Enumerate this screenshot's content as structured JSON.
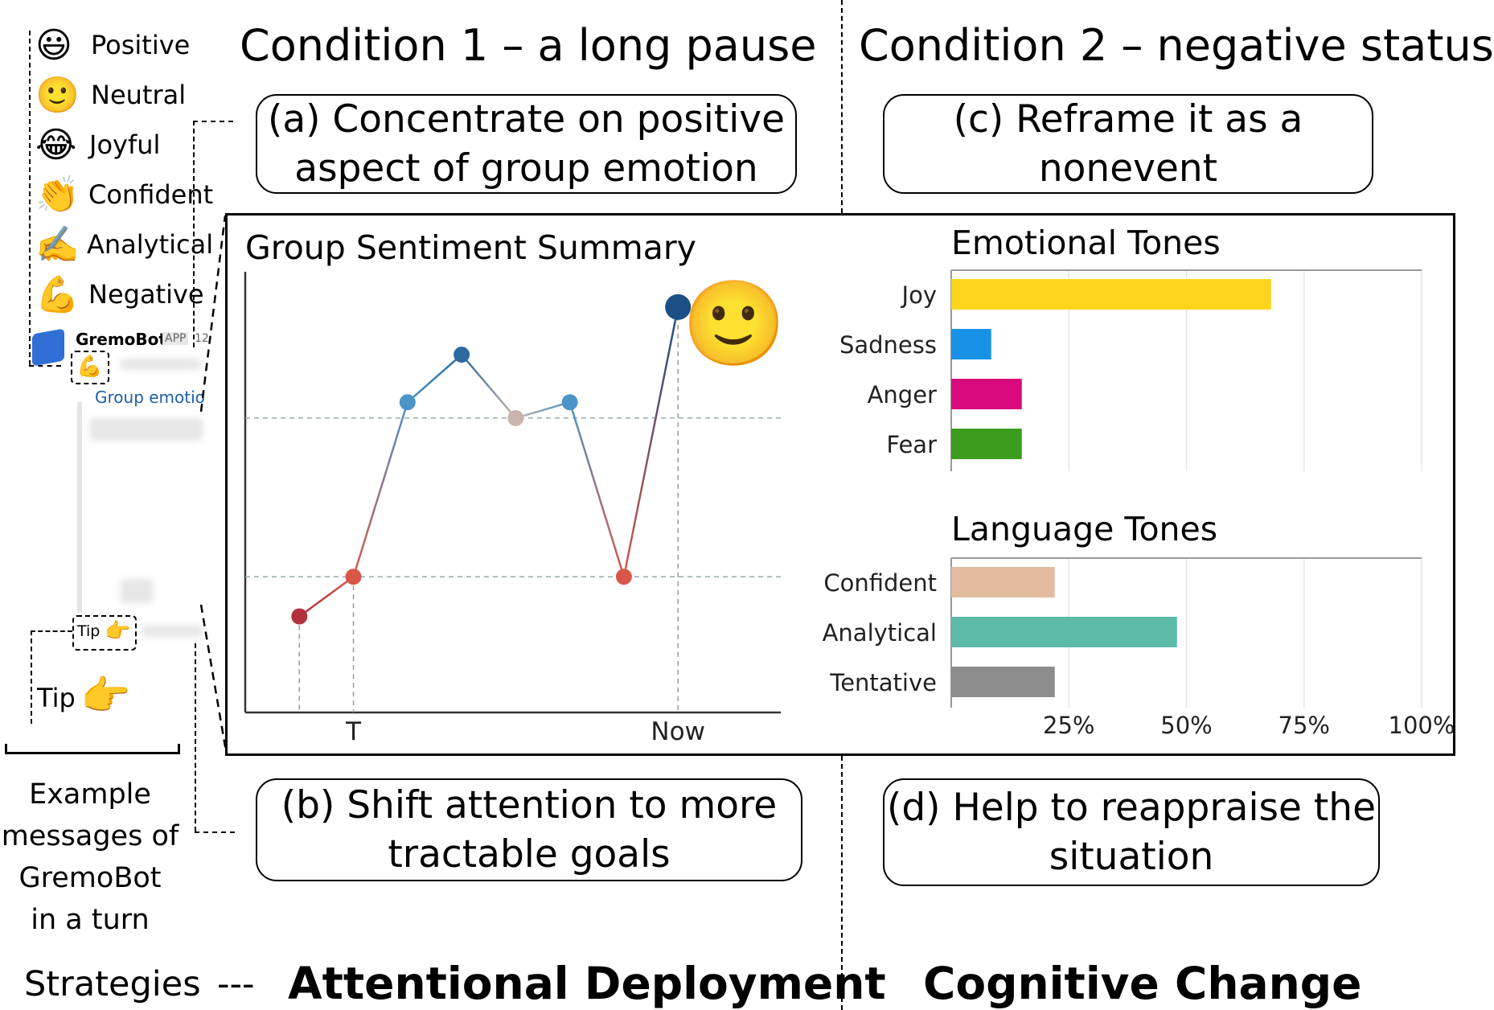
{
  "legend": {
    "items": [
      {
        "icon": "grinning-face-icon",
        "glyph": "😃",
        "label": "Positive"
      },
      {
        "icon": "slightly-smiling-face-icon",
        "glyph": "🙂",
        "label": "Neutral"
      },
      {
        "icon": "tears-of-joy-face-icon",
        "glyph": "😂",
        "label": "Joyful"
      },
      {
        "icon": "clapping-hands-icon",
        "glyph": "👏",
        "label": "Confident"
      },
      {
        "icon": "writing-hand-icon",
        "glyph": "✍️",
        "label": "Analytical"
      },
      {
        "icon": "flexed-biceps-icon",
        "glyph": "💪",
        "label": "Negative"
      }
    ]
  },
  "message": {
    "bot_name": "GremoBot",
    "app_badge": "APP",
    "time_fragment": "12",
    "link_text": "Group emotio",
    "tip_small": "Tip",
    "tip_large": "Tip"
  },
  "conditions": {
    "c1_title": "Condition 1 – a long pause",
    "c2_title": "Condition 2 – negative status"
  },
  "boxes": {
    "a_line1": "(a) Concentrate on positive",
    "a_line2": "aspect of group emotion",
    "b_line1": "(b) Shift attention to more",
    "b_line2": "tractable goals",
    "c_line1": "(c) Reframe it as a",
    "c_line2": "nonevent",
    "d_line1": "(d) Help to reappraise the",
    "d_line2": "situation"
  },
  "footer": {
    "example_lines": [
      "Example",
      "messages of",
      "GremoBot",
      "in a turn"
    ],
    "strategies_label": "Strategies",
    "strategies_sep": "---",
    "attentional": "Attentional Deployment",
    "cognitive": "Cognitive Change"
  },
  "chart_data": [
    {
      "type": "line",
      "title": "Group Sentiment Summary",
      "x": [
        1,
        2,
        3,
        4,
        5,
        6,
        7,
        8
      ],
      "y": [
        0.22,
        0.32,
        0.76,
        0.88,
        0.72,
        0.76,
        0.32,
        1.0
      ],
      "point_colors": [
        "#b2313b",
        "#d9574a",
        "#4b94c6",
        "#2c6aa0",
        "#c8b5ad",
        "#4b94c6",
        "#d9574a",
        "#1b4f86"
      ],
      "x_ticks": [
        {
          "x": 2,
          "label": "T"
        },
        {
          "x": 8,
          "label": "Now"
        }
      ],
      "reference_lines_y": [
        0.32,
        0.72
      ],
      "emoji_glyph": "🙂"
    },
    {
      "type": "bar",
      "orientation": "horizontal",
      "title": "Emotional Tones",
      "categories": [
        "Joy",
        "Sadness",
        "Anger",
        "Fear"
      ],
      "values": [
        68,
        8.5,
        15,
        15
      ],
      "colors": [
        "#fdd51c",
        "#1892e6",
        "#d8097c",
        "#3c9c1e"
      ],
      "xlim": [
        0,
        100
      ]
    },
    {
      "type": "bar",
      "orientation": "horizontal",
      "title": "Language Tones",
      "categories": [
        "Confident",
        "Analytical",
        "Tentative"
      ],
      "values": [
        22,
        48,
        22
      ],
      "colors": [
        "#e3bca0",
        "#5bbba7",
        "#8c8c8c"
      ],
      "xlim": [
        0,
        100
      ],
      "x_tick_labels": [
        "25%",
        "50%",
        "75%",
        "100%"
      ]
    }
  ]
}
